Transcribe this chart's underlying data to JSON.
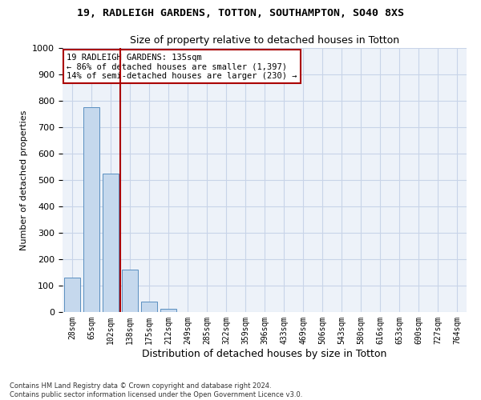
{
  "title1": "19, RADLEIGH GARDENS, TOTTON, SOUTHAMPTON, SO40 8XS",
  "title2": "Size of property relative to detached houses in Totton",
  "xlabel": "Distribution of detached houses by size in Totton",
  "ylabel": "Number of detached properties",
  "bar_labels": [
    "28sqm",
    "65sqm",
    "102sqm",
    "138sqm",
    "175sqm",
    "212sqm",
    "249sqm",
    "285sqm",
    "322sqm",
    "359sqm",
    "396sqm",
    "433sqm",
    "469sqm",
    "506sqm",
    "543sqm",
    "580sqm",
    "616sqm",
    "653sqm",
    "690sqm",
    "727sqm",
    "764sqm"
  ],
  "bar_heights": [
    130,
    775,
    525,
    160,
    38,
    12,
    0,
    0,
    0,
    0,
    0,
    0,
    0,
    0,
    0,
    0,
    0,
    0,
    0,
    0,
    0
  ],
  "bar_color": "#c5d8ed",
  "bar_edgecolor": "#5a8fc0",
  "grid_color": "#c8d4e8",
  "background_color": "#edf2f9",
  "vline_x": 2.5,
  "vline_color": "#aa0000",
  "annotation_text": "19 RADLEIGH GARDENS: 135sqm\n← 86% of detached houses are smaller (1,397)\n14% of semi-detached houses are larger (230) →",
  "annotation_box_color": "#ffffff",
  "annotation_border_color": "#aa0000",
  "ylim": [
    0,
    1000
  ],
  "yticks": [
    0,
    100,
    200,
    300,
    400,
    500,
    600,
    700,
    800,
    900,
    1000
  ],
  "footnote": "Contains HM Land Registry data © Crown copyright and database right 2024.\nContains public sector information licensed under the Open Government Licence v3.0."
}
